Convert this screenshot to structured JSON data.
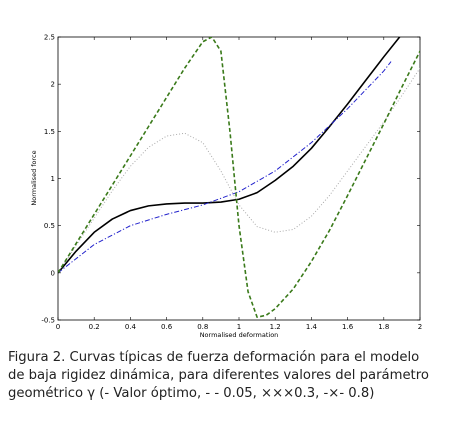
{
  "chart_data": {
    "type": "line",
    "xlabel": "Normalised deformation",
    "ylabel": "Normalised force",
    "xlim": [
      0,
      2
    ],
    "ylim": [
      -0.5,
      2.5
    ],
    "x_ticks": [
      "0",
      "0.2",
      "0.4",
      "0.6",
      "0.8",
      "1",
      "1.2",
      "1.4",
      "1.6",
      "1.8",
      "2"
    ],
    "y_ticks": [
      "-0.5",
      "0",
      "0.5",
      "1",
      "1.5",
      "2",
      "2.5"
    ],
    "x_tick_values": [
      0,
      0.2,
      0.4,
      0.6,
      0.8,
      1.0,
      1.2,
      1.4,
      1.6,
      1.8,
      2.0
    ],
    "y_tick_values": [
      -0.5,
      0,
      0.5,
      1.0,
      1.5,
      2.0,
      2.5
    ],
    "grid": false,
    "legend": "none",
    "series": [
      {
        "style": "solid",
        "color": "#000000",
        "x": [
          0,
          0.1,
          0.2,
          0.3,
          0.4,
          0.5,
          0.6,
          0.7,
          0.8,
          0.9,
          1.0,
          1.1,
          1.2,
          1.3,
          1.4,
          1.5,
          1.6,
          1.7,
          1.8,
          1.9,
          1.93
        ],
        "y": [
          0,
          0.23,
          0.43,
          0.57,
          0.66,
          0.71,
          0.73,
          0.74,
          0.74,
          0.75,
          0.78,
          0.85,
          0.98,
          1.13,
          1.32,
          1.55,
          1.79,
          2.04,
          2.29,
          2.53,
          2.6
        ]
      },
      {
        "style": "dashdot",
        "color": "#2222cc",
        "x": [
          0,
          0.2,
          0.4,
          0.6,
          0.8,
          1.0,
          1.2,
          1.4,
          1.6,
          1.8,
          1.84
        ],
        "y": [
          0,
          0.3,
          0.5,
          0.62,
          0.72,
          0.86,
          1.08,
          1.38,
          1.74,
          2.14,
          2.24
        ]
      },
      {
        "style": "dotted",
        "color": "#aaaaaa",
        "x": [
          0,
          0.1,
          0.2,
          0.3,
          0.4,
          0.5,
          0.6,
          0.7,
          0.8,
          0.9,
          1.0,
          1.1,
          1.2,
          1.3,
          1.4,
          1.5,
          1.6,
          1.7,
          1.8,
          1.9,
          2.0
        ],
        "y": [
          0,
          0.29,
          0.58,
          0.87,
          1.13,
          1.33,
          1.45,
          1.48,
          1.38,
          1.08,
          0.72,
          0.49,
          0.43,
          0.46,
          0.6,
          0.82,
          1.08,
          1.34,
          1.6,
          1.88,
          2.17
        ]
      },
      {
        "style": "dashed",
        "color": "#3a7a1a",
        "x": [
          0,
          0.1,
          0.2,
          0.3,
          0.4,
          0.5,
          0.6,
          0.7,
          0.8,
          0.85,
          0.9,
          0.95,
          1.0,
          1.05,
          1.1,
          1.15,
          1.2,
          1.3,
          1.4,
          1.5,
          1.6,
          1.7,
          1.8,
          1.9,
          2.0
        ],
        "y": [
          0,
          0.31,
          0.62,
          0.93,
          1.24,
          1.55,
          1.86,
          2.17,
          2.45,
          2.5,
          2.35,
          1.5,
          0.5,
          -0.2,
          -0.47,
          -0.45,
          -0.38,
          -0.17,
          0.12,
          0.45,
          0.82,
          1.2,
          1.58,
          1.97,
          2.35
        ]
      }
    ]
  },
  "caption": {
    "line1": "Figura 2. Curvas típicas de fuerza deformación para el modelo",
    "line2": "de baja rigidez dinámica, para diferentes valores del parámetro",
    "line3": "geométrico γ (- Valor óptimo, - - 0.05, ×××0.3, -×- 0.8)"
  }
}
